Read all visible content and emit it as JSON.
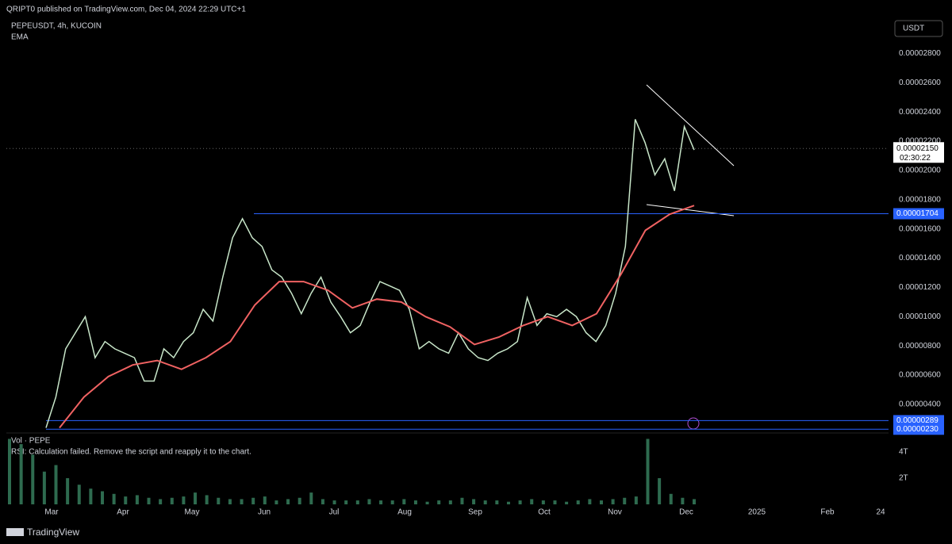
{
  "header": {
    "publisher": "QRIPT0 published on TradingView.com, Dec 04, 2024 22:29 UTC+1",
    "footer": "TradingView"
  },
  "chart_data": {
    "type": "line",
    "symbol": "PEPEUSDT, 4h, KUCOIN",
    "indicator": "EMA",
    "currency": "USDT",
    "x_labels": [
      "Mar",
      "Apr",
      "May",
      "Jun",
      "Jul",
      "Aug",
      "Sep",
      "Oct",
      "Nov",
      "Dec",
      "2025",
      "Feb",
      "24"
    ],
    "ylim": [
      2.1e-06,
      3.03e-05
    ],
    "yticks": [
      {
        "value": 2.8e-05,
        "label": "0.00002800"
      },
      {
        "value": 2.6e-05,
        "label": "0.00002600"
      },
      {
        "value": 2.4e-05,
        "label": "0.00002400"
      },
      {
        "value": 2.2e-05,
        "label": "0.00002200"
      },
      {
        "value": 2e-05,
        "label": "0.00002000"
      },
      {
        "value": 1.8e-05,
        "label": "0.00001800"
      },
      {
        "value": 1.6e-05,
        "label": "0.00001600"
      },
      {
        "value": 1.4e-05,
        "label": "0.00001400"
      },
      {
        "value": 1.2e-05,
        "label": "0.00001200"
      },
      {
        "value": 1e-05,
        "label": "0.00001000"
      },
      {
        "value": 8e-06,
        "label": "0.00000800"
      },
      {
        "value": 6e-06,
        "label": "0.00000600"
      },
      {
        "value": 4e-06,
        "label": "0.00000400"
      }
    ],
    "grid": false,
    "series": [
      {
        "name": "PEPEUSDT",
        "color": "#c8e6c9",
        "values": [
          2.4e-06,
          4.5e-06,
          7.8e-06,
          8.9e-06,
          1e-05,
          7.2e-06,
          8.3e-06,
          7.8e-06,
          7.5e-06,
          7.2e-06,
          5.6e-06,
          5.6e-06,
          7.8e-06,
          7.2e-06,
          8.3e-06,
          8.9e-06,
          1.05e-05,
          9.7e-06,
          1.27e-05,
          1.54e-05,
          1.67e-05,
          1.54e-05,
          1.48e-05,
          1.32e-05,
          1.27e-05,
          1.16e-05,
          1.02e-05,
          1.16e-05,
          1.27e-05,
          1.1e-05,
          1e-05,
          8.9e-06,
          9.4e-06,
          1.1e-05,
          1.24e-05,
          1.21e-05,
          1.18e-05,
          1.05e-05,
          7.8e-06,
          8.3e-06,
          7.8e-06,
          7.5e-06,
          8.9e-06,
          7.8e-06,
          7.2e-06,
          7e-06,
          7.5e-06,
          7.8e-06,
          8.3e-06,
          1.13e-05,
          9.4e-06,
          1.02e-05,
          1e-05,
          1.05e-05,
          1e-05,
          8.9e-06,
          8.3e-06,
          9.4e-06,
          1.16e-05,
          1.48e-05,
          2.35e-05,
          2.19e-05,
          1.97e-05,
          2.08e-05,
          1.86e-05,
          2.3e-05,
          2.14e-05
        ]
      },
      {
        "name": "EMA",
        "color": "#f06262",
        "values": [
          2.4e-06,
          4.5e-06,
          5.9e-06,
          6.7e-06,
          7e-06,
          6.4e-06,
          7.2e-06,
          8.3e-06,
          1.08e-05,
          1.24e-05,
          1.24e-05,
          1.18e-05,
          1.06e-05,
          1.12e-05,
          1.1e-05,
          1e-05,
          9.3e-06,
          8.1e-06,
          8.6e-06,
          9.4e-06,
          1e-05,
          9.4e-06,
          1.02e-05,
          1.29e-05,
          1.59e-05,
          1.7e-05,
          1.76e-05
        ]
      }
    ],
    "levels": [
      {
        "value": 1.704e-05,
        "label": "0.00001704",
        "color": "#2962ff"
      },
      {
        "value": 2.89e-06,
        "label": "0.00000289",
        "color": "#2962ff"
      },
      {
        "value": 2.3e-06,
        "label": "0.00000230",
        "color": "#2962ff"
      }
    ],
    "last_price": {
      "value": 2.15e-05,
      "label": "0.00002150",
      "countdown": "02:30:22"
    },
    "volume": {
      "title": "Vol · PEPE",
      "note": "RSI: Calculation failed. Remove the script and reapply it to the chart.",
      "color": "#2e6b4f",
      "ylim": [
        0,
        5.33
      ],
      "yticks": [
        {
          "value": 4,
          "label": "4T"
        },
        {
          "value": 2,
          "label": "2T"
        }
      ],
      "values": [
        5,
        4.6,
        3.8,
        2.5,
        3,
        2,
        1.5,
        1.2,
        1,
        0.8,
        0.6,
        0.7,
        0.5,
        0.4,
        0.5,
        0.6,
        0.9,
        0.7,
        0.5,
        0.4,
        0.4,
        0.5,
        0.6,
        0.3,
        0.4,
        0.5,
        0.9,
        0.4,
        0.3,
        0.3,
        0.3,
        0.4,
        0.3,
        0.3,
        0.4,
        0.3,
        0.2,
        0.3,
        0.3,
        0.5,
        0.4,
        0.3,
        0.3,
        0.2,
        0.3,
        0.4,
        0.3,
        0.3,
        0.2,
        0.3,
        0.4,
        0.3,
        0.4,
        0.5,
        0.6,
        5,
        2,
        0.8,
        0.5,
        0.4
      ]
    }
  }
}
